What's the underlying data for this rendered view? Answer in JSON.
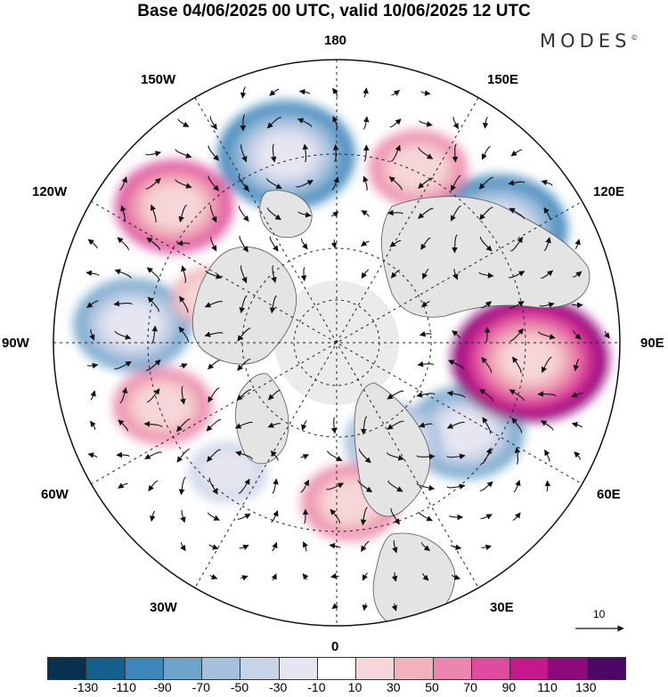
{
  "title": "Base 04/06/2025 00 UTC, valid 10/06/2025 12 UTC",
  "brand": {
    "text": "MODES",
    "mark": "©"
  },
  "longitude_labels": {
    "top": "180",
    "bottom": "0",
    "left": "90W",
    "right": "90E",
    "upper_left_1": "150W",
    "upper_left_2": "120W",
    "lower_left_1": "60W",
    "lower_left_2": "30W",
    "upper_right_1": "150E",
    "upper_right_2": "120E",
    "lower_right_1": "60E",
    "lower_right_2": "30E"
  },
  "reference_vector": {
    "label": "10"
  },
  "colorbar": {
    "colors": [
      "#08304f",
      "#155f8c",
      "#3d86bb",
      "#6ea4cc",
      "#a3c0dd",
      "#c9d3e8",
      "#e6e6f2",
      "#ffffff",
      "#f6d6d8",
      "#f1b3bb",
      "#ec86ae",
      "#dd4c9f",
      "#c4188b",
      "#8c0a7b",
      "#4d0866"
    ],
    "tick_labels": [
      "-130",
      "-110",
      "-90",
      "-70",
      "-50",
      "-30",
      "-10",
      "10",
      "30",
      "50",
      "70",
      "90",
      "110",
      "130"
    ]
  },
  "anomaly_features": [
    {
      "sign": "negative",
      "value": -100,
      "lon_label": "165W"
    },
    {
      "sign": "negative",
      "value": -95,
      "lon_label": "125E"
    },
    {
      "sign": "negative",
      "value": -80,
      "lon_label": "95W"
    },
    {
      "sign": "negative",
      "value": -70,
      "lon_label": "55E"
    },
    {
      "sign": "negative",
      "value": -60,
      "lon_label": "30E"
    },
    {
      "sign": "negative",
      "value": -40,
      "lon_label": "40W"
    },
    {
      "sign": "positive",
      "value": 115,
      "lon_label": "85E"
    },
    {
      "sign": "positive",
      "value": 80,
      "lon_label": "130W"
    },
    {
      "sign": "positive",
      "value": 60,
      "lon_label": "155E"
    },
    {
      "sign": "positive",
      "value": 55,
      "lon_label": "70W"
    },
    {
      "sign": "positive",
      "value": 60,
      "lon_label": "5E"
    },
    {
      "sign": "positive",
      "value": 40,
      "lon_label": "110W"
    }
  ]
}
